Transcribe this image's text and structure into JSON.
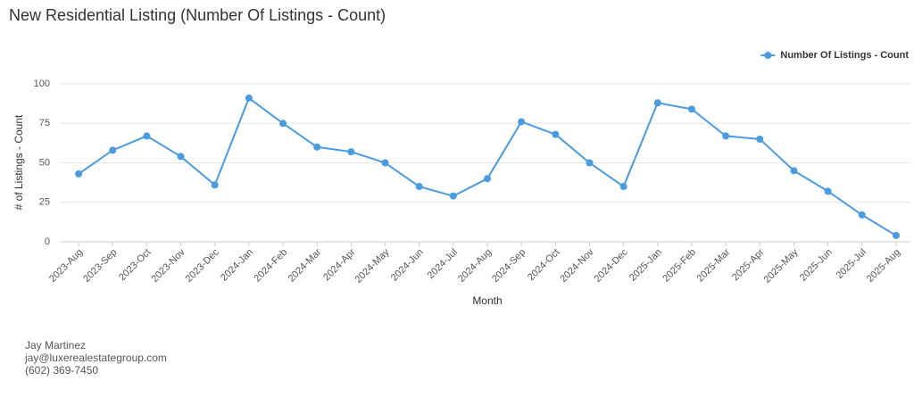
{
  "chart_data": {
    "type": "line",
    "title": "New Residential Listing (Number Of Listings - Count)",
    "x_label": "Month",
    "y_label": "# of Listings - Count",
    "categories": [
      "2023-Aug",
      "2023-Sep",
      "2023-Oct",
      "2023-Nov",
      "2023-Dec",
      "2024-Jan",
      "2024-Feb",
      "2024-Mar",
      "2024-Apr",
      "2024-May",
      "2024-Jun",
      "2024-Jul",
      "2024-Aug",
      "2024-Sep",
      "2024-Oct",
      "2024-Nov",
      "2024-Dec",
      "2025-Jan",
      "2025-Feb",
      "2025-Mar",
      "2025-Apr",
      "2025-May",
      "2025-Jun",
      "2025-Jul",
      "2025-Aug"
    ],
    "series": [
      {
        "name": "Number Of Listings - Count",
        "color": "#4a9be0",
        "values": [
          43,
          58,
          67,
          54,
          36,
          91,
          75,
          60,
          57,
          50,
          35,
          29,
          40,
          76,
          68,
          50,
          35,
          88,
          84,
          67,
          65,
          45,
          32,
          17,
          4
        ]
      }
    ],
    "ylim": [
      0,
      100
    ],
    "yticks": [
      0,
      25,
      50,
      75,
      100
    ],
    "grid": true,
    "legend": "top-right"
  },
  "footer": {
    "name": "Jay Martinez",
    "email": "jay@luxerealestategroup.com",
    "phone": "(602) 369-7450"
  }
}
